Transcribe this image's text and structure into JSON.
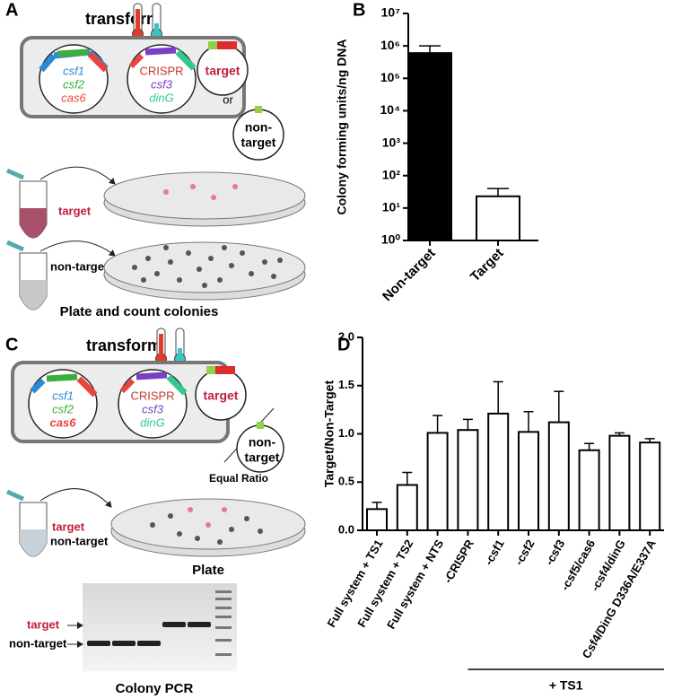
{
  "panels": {
    "A": {
      "label": "A",
      "transform": "transform",
      "plasmid1": [
        "csf1",
        "csf2",
        "cas6"
      ],
      "plasmid2": [
        "CRISPR",
        "csf3",
        "dinG"
      ],
      "target": "target",
      "or": "or",
      "nontarget": [
        "non-",
        "target"
      ],
      "tube_target": "target",
      "tube_nontarget": "non-target",
      "caption": "Plate and count colonies"
    },
    "B": {
      "label": "B"
    },
    "C": {
      "label": "C",
      "transform": "transform",
      "plasmid1": [
        "csf1",
        "csf2",
        "cas6"
      ],
      "plasmid2": [
        "CRISPR",
        "csf3",
        "dinG"
      ],
      "target": "target",
      "nontarget": [
        "non-",
        "target"
      ],
      "ratio": "Equal Ratio",
      "tube_labels": [
        "target",
        "non-target"
      ],
      "plate": "Plate",
      "gel_labels": [
        "target",
        "non-target"
      ],
      "caption": "Colony PCR"
    },
    "D": {
      "label": "D"
    }
  },
  "chart_data": [
    {
      "type": "bar",
      "y_label": "Colony forming units/ng DNA",
      "log_scale": true,
      "categories": [
        "Non-target",
        "Target"
      ],
      "values": [
        600000,
        23
      ],
      "errors": [
        400000,
        17
      ],
      "colors": [
        "#000000",
        "#ffffff"
      ],
      "ylim": [
        1,
        10000000
      ],
      "yticks": [
        {
          "value": 1,
          "label": "10⁰"
        },
        {
          "value": 10,
          "label": "10¹"
        },
        {
          "value": 100,
          "label": "10²"
        },
        {
          "value": 1000,
          "label": "10³"
        },
        {
          "value": 10000,
          "label": "10⁴"
        },
        {
          "value": 100000,
          "label": "10⁵"
        },
        {
          "value": 1000000,
          "label": "10⁶"
        },
        {
          "value": 10000000,
          "label": "10⁷"
        }
      ]
    },
    {
      "type": "bar",
      "y_label": "Target/Non-Target",
      "categories": [
        "Full system + TS1",
        "Full system + TS2",
        "Full system + NTS",
        "-CRISPR",
        "-csf1",
        "-csf2",
        "-csf3",
        "-csf5/cas6",
        "-csf4/dinG",
        "Csf4/DinG D336A/E337A"
      ],
      "values": [
        0.22,
        0.47,
        1.01,
        1.04,
        1.21,
        1.02,
        1.12,
        0.83,
        0.98,
        0.91
      ],
      "errors": [
        0.07,
        0.13,
        0.18,
        0.11,
        0.33,
        0.21,
        0.32,
        0.07,
        0.03,
        0.04
      ],
      "colors": [
        "#ffffff"
      ],
      "ylim": [
        0,
        2
      ],
      "yticks": [
        {
          "value": 0,
          "label": "0.0"
        },
        {
          "value": 0.5,
          "label": "0.5"
        },
        {
          "value": 1,
          "label": "1.0"
        },
        {
          "value": 1.5,
          "label": "1.5"
        },
        {
          "value": 2,
          "label": "2.0"
        }
      ],
      "annotation": "+ TS1"
    }
  ]
}
